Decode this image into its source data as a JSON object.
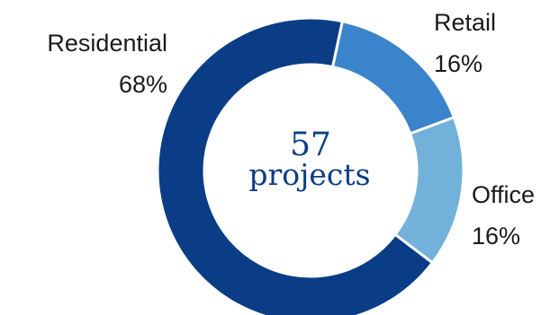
{
  "chart_data": {
    "type": "pie",
    "variant": "donut",
    "categories": [
      "Residential",
      "Retail",
      "Office"
    ],
    "values": [
      68,
      16,
      16
    ],
    "value_labels": [
      "68%",
      "16%",
      "16%"
    ],
    "colors": [
      "#0b3d86",
      "#3a84cb",
      "#72b1da"
    ],
    "center_value": "57",
    "center_unit": "projects",
    "legend": "none"
  }
}
